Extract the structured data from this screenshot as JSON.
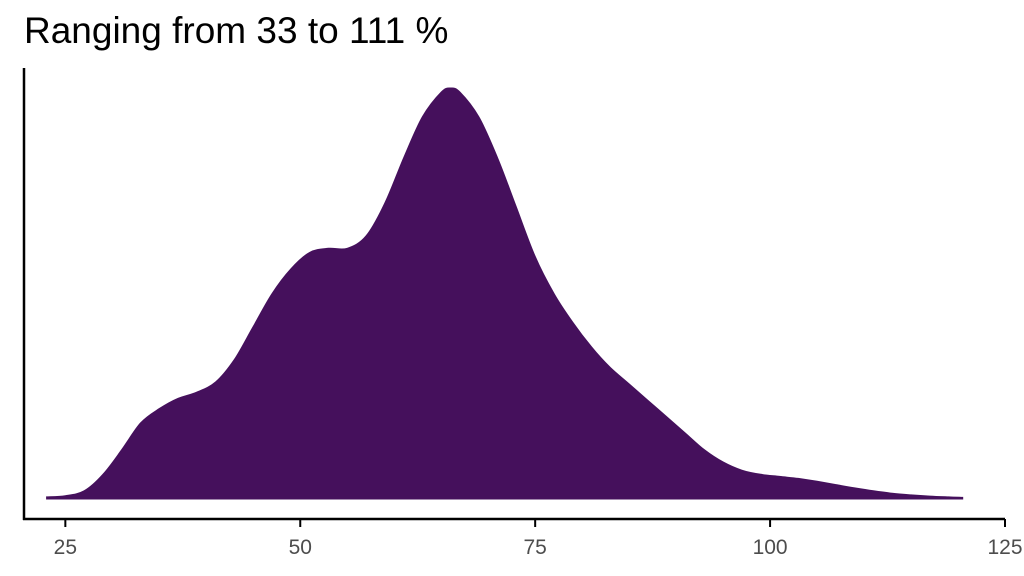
{
  "chart_data": {
    "type": "area",
    "title": "Ranging from 33 to 111 %",
    "xlabel": "",
    "ylabel": "",
    "xlim": [
      20.6,
      125
    ],
    "x_ticks": [
      25,
      50,
      75,
      100,
      125
    ],
    "y_axis_labels": false,
    "grid": false,
    "legend": "none",
    "fill_color": "#45105c",
    "axis_color": "#000000",
    "tick_label_color": "#4d4d4d",
    "series": [
      {
        "x": [
          23.0,
          25.0,
          27.0,
          29.0,
          31.0,
          33.0,
          35.0,
          37.0,
          39.0,
          41.0,
          43.0,
          45.0,
          47.0,
          49.0,
          51.0,
          53.0,
          55.0,
          57.0,
          59.0,
          61.0,
          63.0,
          65.0,
          66.0,
          67.0,
          69.0,
          71.0,
          73.0,
          75.0,
          77.0,
          79.0,
          81.0,
          83.0,
          85.0,
          87.0,
          89.0,
          91.0,
          93.0,
          95.0,
          97.0,
          99.0,
          101.0,
          103.0,
          105.0,
          107.0,
          109.0,
          111.0,
          113.0,
          115.0,
          117.0,
          119.0,
          120.5
        ],
        "y": [
          0.005,
          0.008,
          0.02,
          0.06,
          0.12,
          0.185,
          0.22,
          0.245,
          0.26,
          0.285,
          0.34,
          0.42,
          0.5,
          0.56,
          0.6,
          0.61,
          0.61,
          0.64,
          0.72,
          0.83,
          0.93,
          0.99,
          1.0,
          0.99,
          0.93,
          0.83,
          0.71,
          0.59,
          0.5,
          0.43,
          0.37,
          0.32,
          0.28,
          0.24,
          0.2,
          0.16,
          0.12,
          0.09,
          0.07,
          0.06,
          0.055,
          0.05,
          0.043,
          0.035,
          0.027,
          0.02,
          0.014,
          0.01,
          0.007,
          0.005,
          0.004
        ]
      }
    ]
  }
}
